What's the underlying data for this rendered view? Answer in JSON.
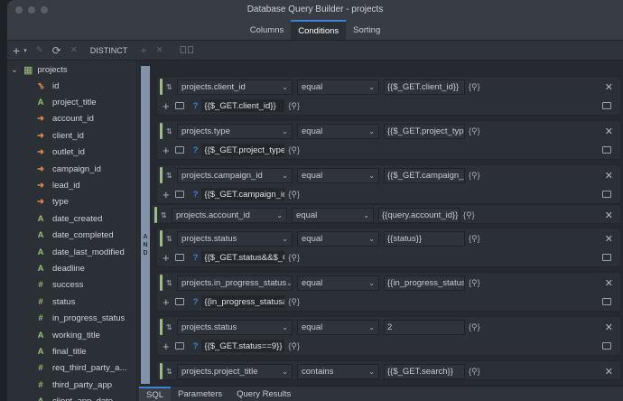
{
  "window": {
    "title": "Database Query Builder - projects"
  },
  "tabs": [
    {
      "label": "Columns"
    },
    {
      "label": "Conditions",
      "active": true
    },
    {
      "label": "Sorting"
    }
  ],
  "toolbar": {
    "distinct_label": "DISTINCT"
  },
  "sidebar": {
    "table": "projects",
    "columns": [
      {
        "name": "id",
        "icon": "key"
      },
      {
        "name": "project_title",
        "icon": "text"
      },
      {
        "name": "account_id",
        "icon": "foreign-key"
      },
      {
        "name": "client_id",
        "icon": "foreign-key"
      },
      {
        "name": "outlet_id",
        "icon": "foreign-key"
      },
      {
        "name": "campaign_id",
        "icon": "foreign-key"
      },
      {
        "name": "lead_id",
        "icon": "foreign-key"
      },
      {
        "name": "type",
        "icon": "foreign-key"
      },
      {
        "name": "date_created",
        "icon": "text"
      },
      {
        "name": "date_completed",
        "icon": "text"
      },
      {
        "name": "date_last_modified",
        "icon": "text"
      },
      {
        "name": "deadline",
        "icon": "text"
      },
      {
        "name": "success",
        "icon": "number"
      },
      {
        "name": "status",
        "icon": "number"
      },
      {
        "name": "in_progress_status",
        "icon": "number"
      },
      {
        "name": "working_title",
        "icon": "text"
      },
      {
        "name": "final_title",
        "icon": "text"
      },
      {
        "name": "req_third_party_a...",
        "icon": "number"
      },
      {
        "name": "third_party_app",
        "icon": "number"
      },
      {
        "name": "client_app_date",
        "icon": "text"
      }
    ]
  },
  "conditions": {
    "logic": "AND",
    "items": [
      {
        "field": "projects.client_id",
        "operator": "equal",
        "value": "{{$_GET.client_id}}",
        "sub": "{{$_GET.client_id}}"
      },
      {
        "field": "projects.type",
        "operator": "equal",
        "value": "{{$_GET.project_type}}",
        "sub": "{{$_GET.project_type}}"
      },
      {
        "field": "projects.campaign_id",
        "operator": "equal",
        "value": "{{$_GET.campaign_id}}",
        "sub": "{{$_GET.campaign_id}}"
      },
      {
        "field": "projects.account_id",
        "operator": "equal",
        "value": "{{query.account_id}}",
        "standalone": true
      },
      {
        "field": "projects.status",
        "operator": "equal",
        "value": "{{status}}",
        "sub": "{{$_GET.status&&$_GET.status}}"
      },
      {
        "field": "projects.in_progress_status",
        "operator": "equal",
        "value": "{{in_progress_status}}",
        "sub": "{{in_progress_status&&"
      },
      {
        "field": "projects.status",
        "operator": "equal",
        "value": "2",
        "sub": "{{$_GET.status==9}}"
      },
      {
        "field": "projects.project_title",
        "operator": "contains",
        "value": "{{$_GET.search}}"
      }
    ]
  },
  "bottom_tabs": [
    {
      "label": "SQL",
      "active": true
    },
    {
      "label": "Parameters"
    },
    {
      "label": "Query Results"
    }
  ],
  "colors": {
    "accent": "#3b82d6",
    "condition_bar": "#9bc07a",
    "key": "#e8834a",
    "text_type": "#9bc07a"
  }
}
